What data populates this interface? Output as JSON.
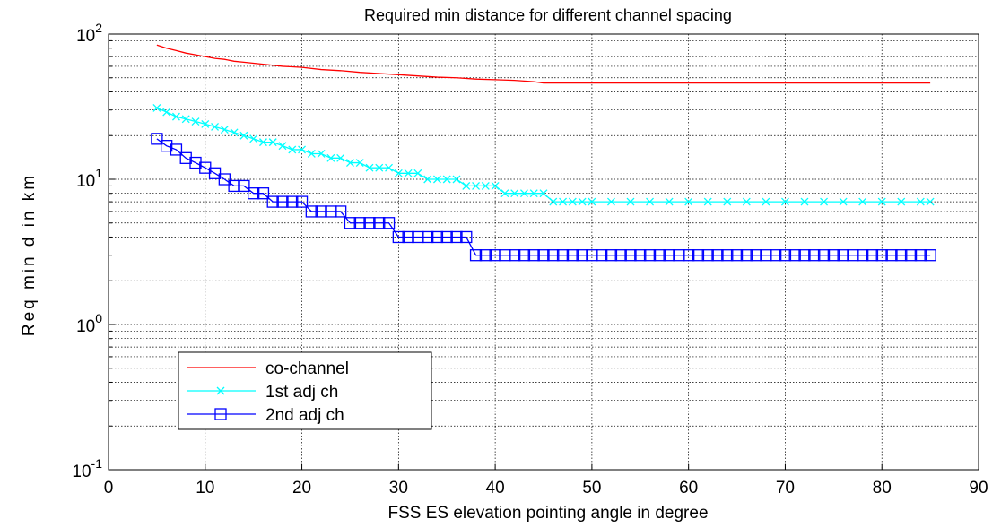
{
  "chart_data": {
    "type": "line",
    "title": "Required min distance for different channel spacing",
    "xlabel": "FSS ES elevation pointing angle in degree",
    "ylabel": "Req min d in km",
    "xlim": [
      0,
      90
    ],
    "ylim": [
      0.1,
      100
    ],
    "yscale": "log",
    "grid": true,
    "legend_position": "lower-left",
    "x_ticks": [
      "0",
      "10",
      "20",
      "30",
      "40",
      "50",
      "60",
      "70",
      "80",
      "90"
    ],
    "y_ticks": [
      {
        "value": 0.1,
        "base": "10",
        "exp": "-1"
      },
      {
        "value": 1,
        "base": "10",
        "exp": "0"
      },
      {
        "value": 10,
        "base": "10",
        "exp": "1"
      },
      {
        "value": 100,
        "base": "10",
        "exp": "2"
      }
    ],
    "series": [
      {
        "name": "co-channel",
        "color": "#ff0000",
        "marker": "none",
        "x": [
          5,
          6,
          7,
          8,
          9,
          10,
          11,
          12,
          13,
          14,
          15,
          16,
          17,
          18,
          19,
          20,
          22,
          24,
          26,
          28,
          30,
          32,
          34,
          36,
          38,
          40,
          42,
          44,
          45,
          50,
          55,
          60,
          65,
          70,
          75,
          80,
          85
        ],
        "values": [
          84,
          80,
          77,
          74,
          72,
          70,
          68,
          67,
          65,
          64,
          63,
          62,
          61,
          60,
          59.5,
          59,
          57,
          56,
          54.5,
          53.5,
          52.5,
          51.5,
          50.5,
          50,
          49,
          48.5,
          48,
          47,
          46,
          46,
          46,
          46,
          46,
          46,
          46,
          46,
          46
        ]
      },
      {
        "name": "1st adj ch",
        "color": "#00ffff",
        "marker": "x",
        "x": [
          5,
          6,
          7,
          8,
          9,
          10,
          11,
          12,
          13,
          14,
          15,
          16,
          17,
          18,
          19,
          20,
          21,
          22,
          23,
          24,
          25,
          26,
          27,
          28,
          29,
          30,
          31,
          32,
          33,
          34,
          35,
          36,
          37,
          38,
          39,
          40,
          41,
          42,
          43,
          44,
          45,
          46,
          47,
          48,
          49,
          50,
          52,
          54,
          56,
          58,
          60,
          62,
          64,
          66,
          68,
          70,
          72,
          74,
          76,
          78,
          80,
          82,
          84,
          85
        ],
        "values": [
          31,
          29,
          27,
          26,
          25,
          24,
          23,
          22,
          21,
          20,
          19,
          18,
          18,
          17,
          16,
          16,
          15,
          15,
          14,
          14,
          13,
          13,
          12,
          12,
          12,
          11,
          11,
          11,
          10,
          10,
          10,
          10,
          9,
          9,
          9,
          9,
          8,
          8,
          8,
          8,
          8,
          7,
          7,
          7,
          7,
          7,
          7,
          7,
          7,
          7,
          7,
          7,
          7,
          7,
          7,
          7,
          7,
          7,
          7,
          7,
          7,
          7,
          7,
          7
        ]
      },
      {
        "name": "2nd adj ch",
        "color": "#0000ff",
        "marker": "square",
        "x": [
          5,
          6,
          7,
          8,
          9,
          10,
          11,
          12,
          13,
          14,
          15,
          16,
          17,
          18,
          19,
          20,
          21,
          22,
          23,
          24,
          25,
          26,
          27,
          28,
          29,
          30,
          31,
          32,
          33,
          34,
          35,
          36,
          37,
          38,
          39,
          40,
          41,
          42,
          43,
          44,
          45,
          46,
          47,
          48,
          49,
          50,
          51,
          52,
          53,
          54,
          55,
          56,
          57,
          58,
          59,
          60,
          61,
          62,
          63,
          64,
          65,
          66,
          67,
          68,
          69,
          70,
          71,
          72,
          73,
          74,
          75,
          76,
          77,
          78,
          79,
          80,
          81,
          82,
          83,
          84,
          85
        ],
        "values": [
          19,
          17,
          16,
          14,
          13,
          12,
          11,
          10,
          9,
          9,
          8,
          8,
          7,
          7,
          7,
          7,
          6,
          6,
          6,
          6,
          5,
          5,
          5,
          5,
          5,
          4,
          4,
          4,
          4,
          4,
          4,
          4,
          4,
          3,
          3,
          3,
          3,
          3,
          3,
          3,
          3,
          3,
          3,
          3,
          3,
          3,
          3,
          3,
          3,
          3,
          3,
          3,
          3,
          3,
          3,
          3,
          3,
          3,
          3,
          3,
          3,
          3,
          3,
          3,
          3,
          3,
          3,
          3,
          3,
          3,
          3,
          3,
          3,
          3,
          3,
          3,
          3,
          3,
          3,
          3,
          3
        ]
      }
    ]
  }
}
